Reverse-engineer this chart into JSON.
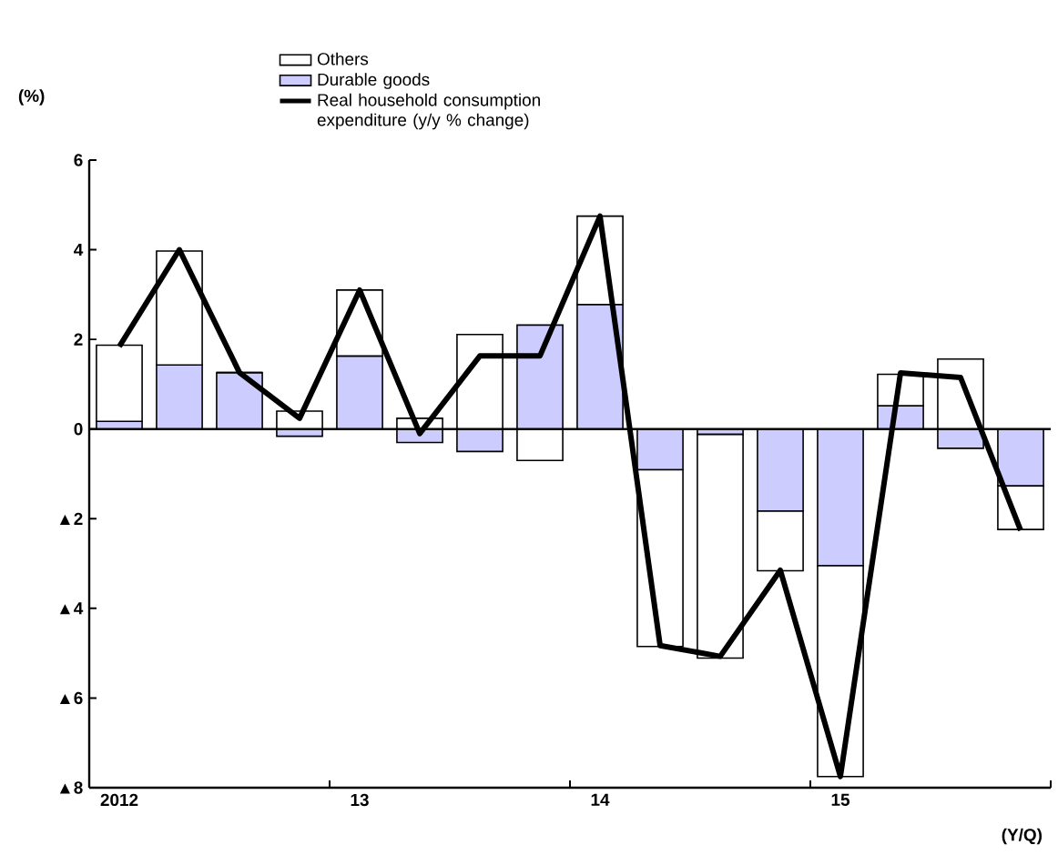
{
  "chart_data": {
    "type": "bar",
    "stacked": true,
    "xlabel": "(Y/Q)",
    "ylabel": "(%)",
    "categories": [
      "2012",
      null,
      null,
      null,
      "13",
      null,
      null,
      null,
      "14",
      null,
      null,
      null,
      "15",
      null,
      null,
      null
    ],
    "series": [
      {
        "name": "Durable goods",
        "color": "#ccccff",
        "values": [
          0.17,
          1.43,
          1.26,
          -0.16,
          1.63,
          -0.3,
          -0.5,
          2.32,
          2.78,
          -0.91,
          -0.12,
          -1.83,
          -3.05,
          0.52,
          -0.43,
          -1.27
        ]
      },
      {
        "name": "Others",
        "color": "#ffffff",
        "values": [
          1.7,
          2.54,
          0,
          0.4,
          1.47,
          0.24,
          2.11,
          -0.7,
          1.97,
          -3.94,
          -4.99,
          -1.33,
          -4.7,
          0.7,
          1.56,
          -0.97
        ]
      },
      {
        "name": "Real household consumption expenditure (y/y % change)",
        "type": "line",
        "color": "#000000",
        "values": [
          1.84,
          4.0,
          1.26,
          0.24,
          3.1,
          -0.1,
          1.63,
          1.63,
          4.75,
          -4.83,
          -5.07,
          -3.15,
          -7.75,
          1.25,
          1.15,
          -2.26
        ]
      }
    ],
    "ylim": [
      -8,
      6
    ],
    "yticks": [
      {
        "value": -8,
        "label": "▲8"
      },
      {
        "value": -6,
        "label": "▲6"
      },
      {
        "value": -4,
        "label": "▲4"
      },
      {
        "value": -2,
        "label": "▲2"
      },
      0,
      2,
      4,
      6
    ],
    "legend": "top",
    "marker": "none",
    "line_style": "solid"
  }
}
